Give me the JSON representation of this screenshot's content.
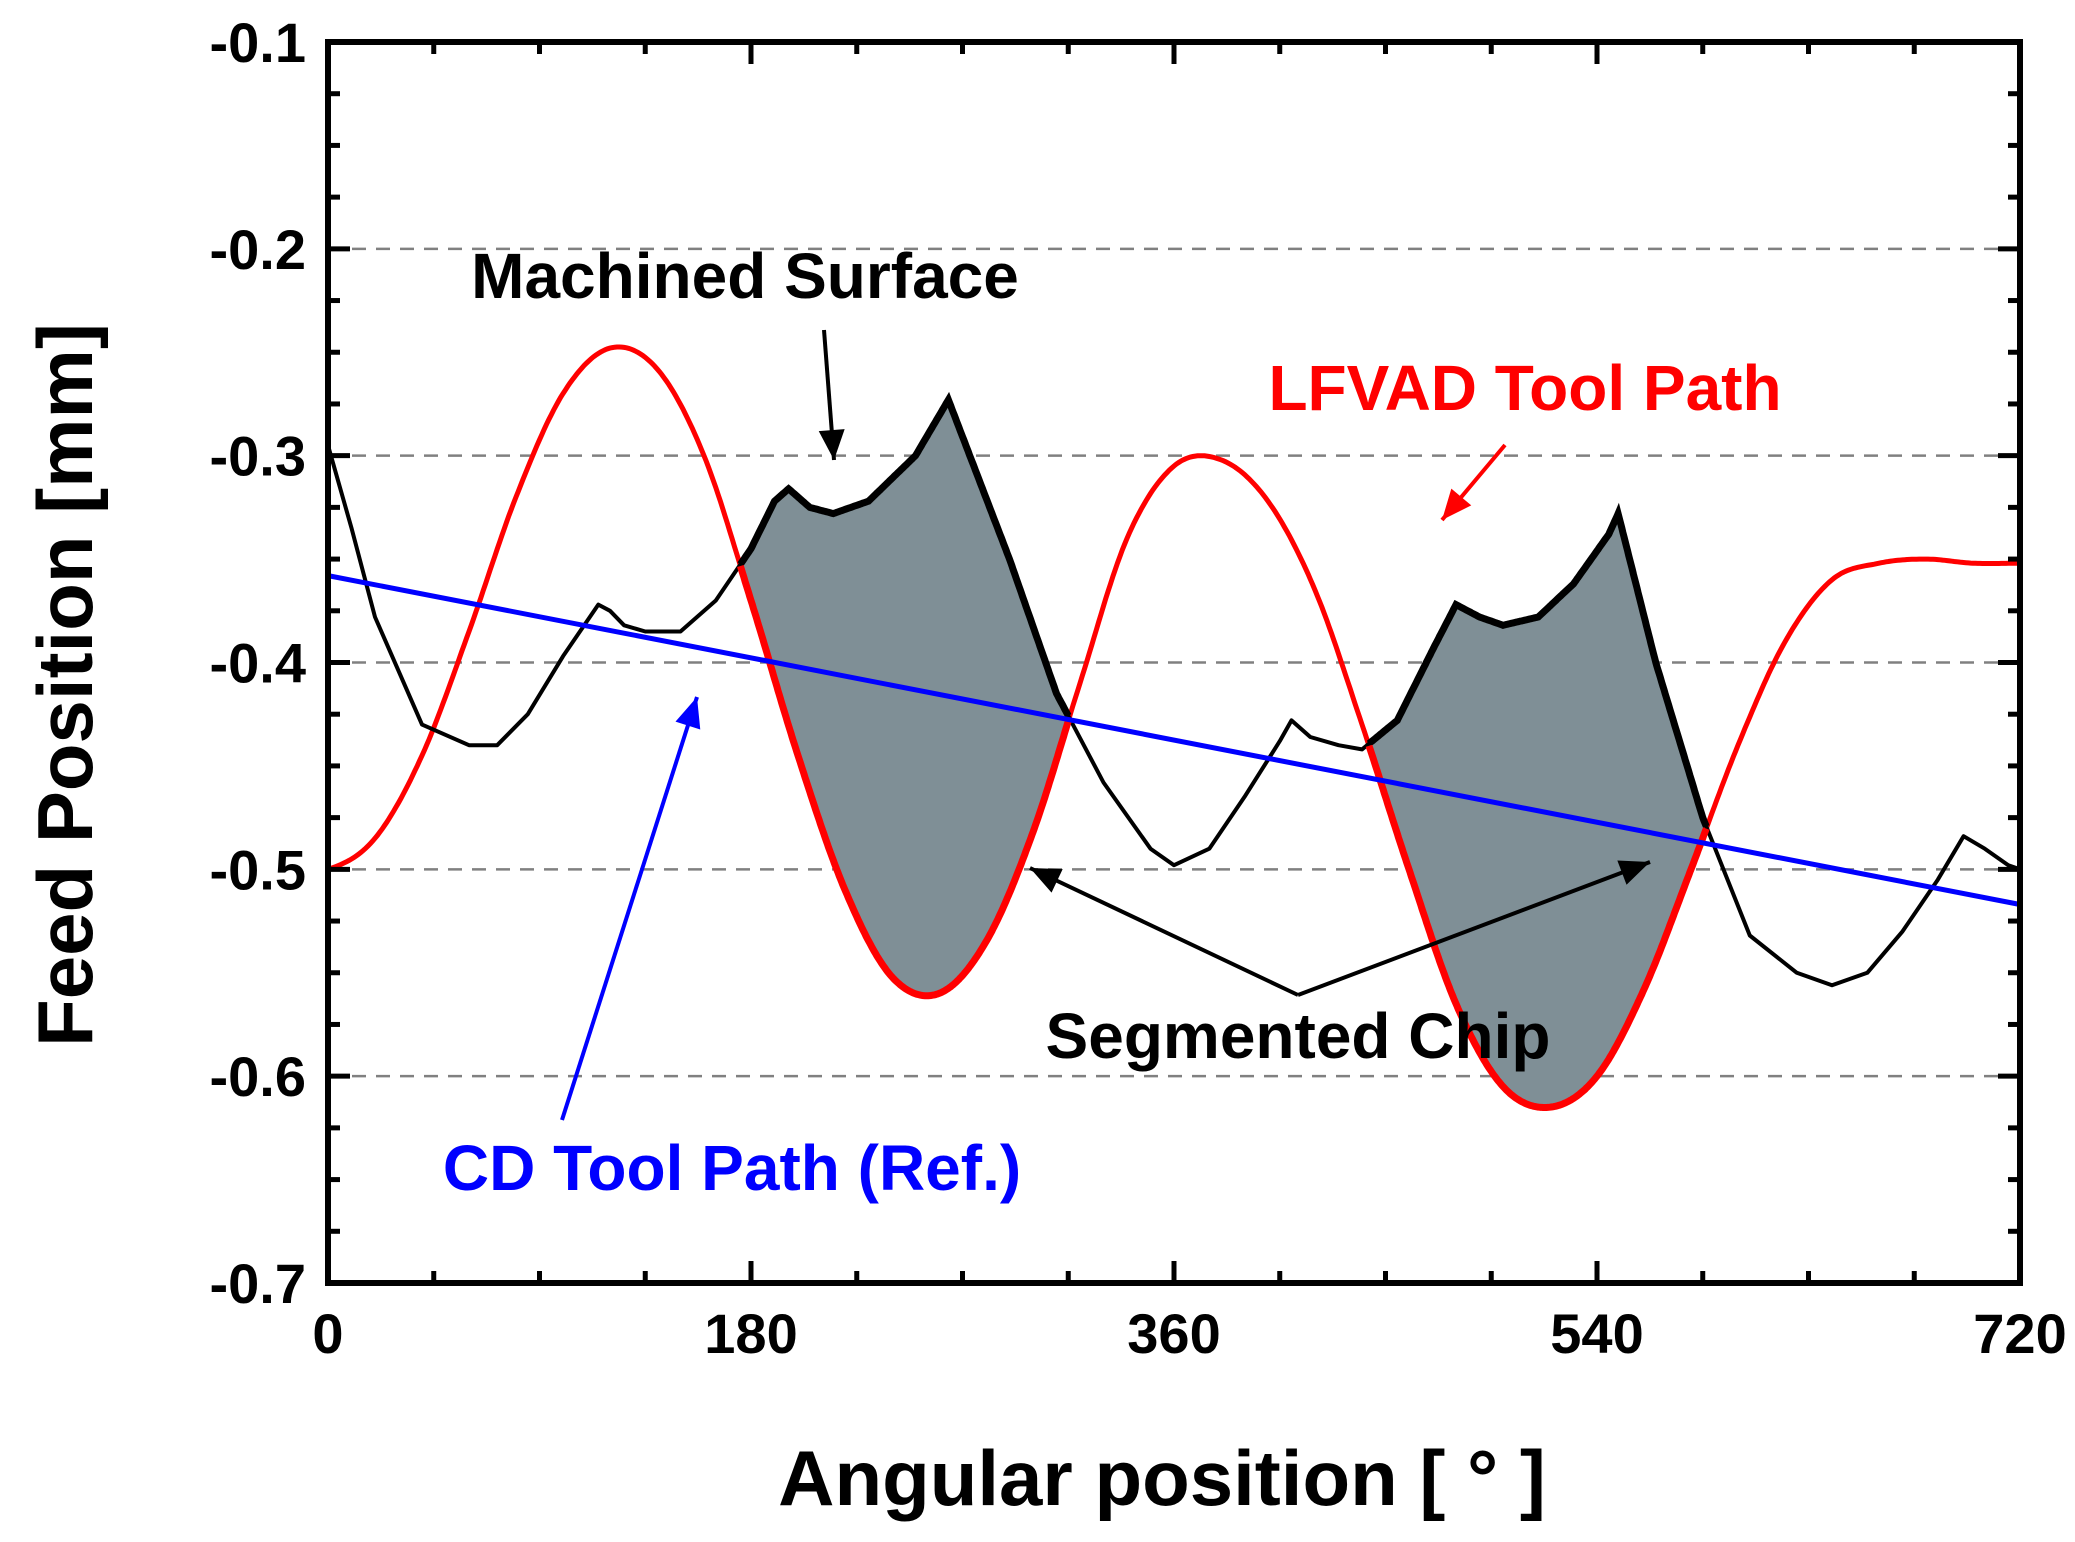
{
  "chart_data": {
    "type": "line",
    "title": "",
    "xlabel": "Angular position [ ° ]",
    "ylabel": "Feed Position [mm]",
    "xlim": [
      0,
      720
    ],
    "ylim": [
      -0.7,
      -0.1
    ],
    "xticks": [
      0,
      180,
      360,
      540,
      720
    ],
    "xtick_labels": [
      "0",
      "180",
      "360",
      "540",
      "720"
    ],
    "yticks": [
      -0.1,
      -0.2,
      -0.3,
      -0.4,
      -0.5,
      -0.6,
      -0.7
    ],
    "ytick_labels": [
      "-0.1",
      "-0.2",
      "-0.3",
      "-0.4",
      "-0.5",
      "-0.6",
      "-0.7"
    ],
    "grid": "dashed horizontal at -0.2 to -0.6",
    "series": [
      {
        "name": "LFVAD Tool Path",
        "color": "#ff0000",
        "x": [
          0,
          20,
          40,
          60,
          80,
          100,
          120,
          140,
          160,
          180,
          200,
          220,
          240,
          260,
          280,
          300,
          320,
          340,
          360,
          380,
          400,
          420,
          440,
          460,
          480,
          500,
          520,
          540,
          560,
          580,
          600,
          620,
          640,
          660,
          680,
          700,
          720
        ],
        "values": [
          -0.5,
          -0.485,
          -0.445,
          -0.385,
          -0.32,
          -0.27,
          -0.248,
          -0.258,
          -0.3,
          -0.37,
          -0.445,
          -0.51,
          -0.552,
          -0.56,
          -0.535,
          -0.482,
          -0.41,
          -0.34,
          -0.305,
          -0.302,
          -0.322,
          -0.365,
          -0.43,
          -0.5,
          -0.565,
          -0.605,
          -0.615,
          -0.6,
          -0.558,
          -0.5,
          -0.44,
          -0.39,
          -0.36,
          -0.352,
          -0.35,
          -0.352,
          -0.352
        ]
      },
      {
        "name": "Machined Surface",
        "color": "#000000",
        "x": [
          0,
          10,
          20,
          40,
          60,
          72,
          85,
          100,
          115,
          120,
          126,
          135,
          150,
          165,
          180,
          190,
          196,
          205,
          215,
          230,
          250,
          264,
          290,
          310,
          330,
          350,
          360,
          375,
          390,
          405,
          410,
          418,
          430,
          440,
          455,
          470,
          480,
          490,
          500,
          515,
          530,
          545,
          549,
          565,
          585,
          605,
          625,
          640,
          655,
          670,
          685,
          696,
          705,
          715,
          720
        ],
        "values": [
          -0.295,
          -0.335,
          -0.378,
          -0.43,
          -0.44,
          -0.44,
          -0.425,
          -0.397,
          -0.372,
          -0.375,
          -0.382,
          -0.385,
          -0.385,
          -0.37,
          -0.345,
          -0.322,
          -0.316,
          -0.325,
          -0.328,
          -0.322,
          -0.3,
          -0.273,
          -0.35,
          -0.415,
          -0.458,
          -0.49,
          -0.498,
          -0.49,
          -0.465,
          -0.438,
          -0.428,
          -0.436,
          -0.44,
          -0.442,
          -0.428,
          -0.394,
          -0.372,
          -0.378,
          -0.382,
          -0.378,
          -0.362,
          -0.338,
          -0.328,
          -0.4,
          -0.475,
          -0.532,
          -0.55,
          -0.556,
          -0.55,
          -0.53,
          -0.505,
          -0.484,
          -0.49,
          -0.498,
          -0.5
        ]
      },
      {
        "name": "CD Tool Path (Ref.)",
        "color": "#0000ff",
        "x": [
          0,
          720
        ],
        "values": [
          -0.358,
          -0.517
        ]
      }
    ],
    "annotations": [
      {
        "text": "Machined Surface",
        "color": "#000000"
      },
      {
        "text": "LFVAD Tool Path",
        "color": "#ff0000"
      },
      {
        "text": "Segmented Chip",
        "color": "#000000"
      },
      {
        "text": "CD Tool Path (Ref.)",
        "color": "#0000ff"
      }
    ],
    "fill_color": "#7f8f96"
  }
}
